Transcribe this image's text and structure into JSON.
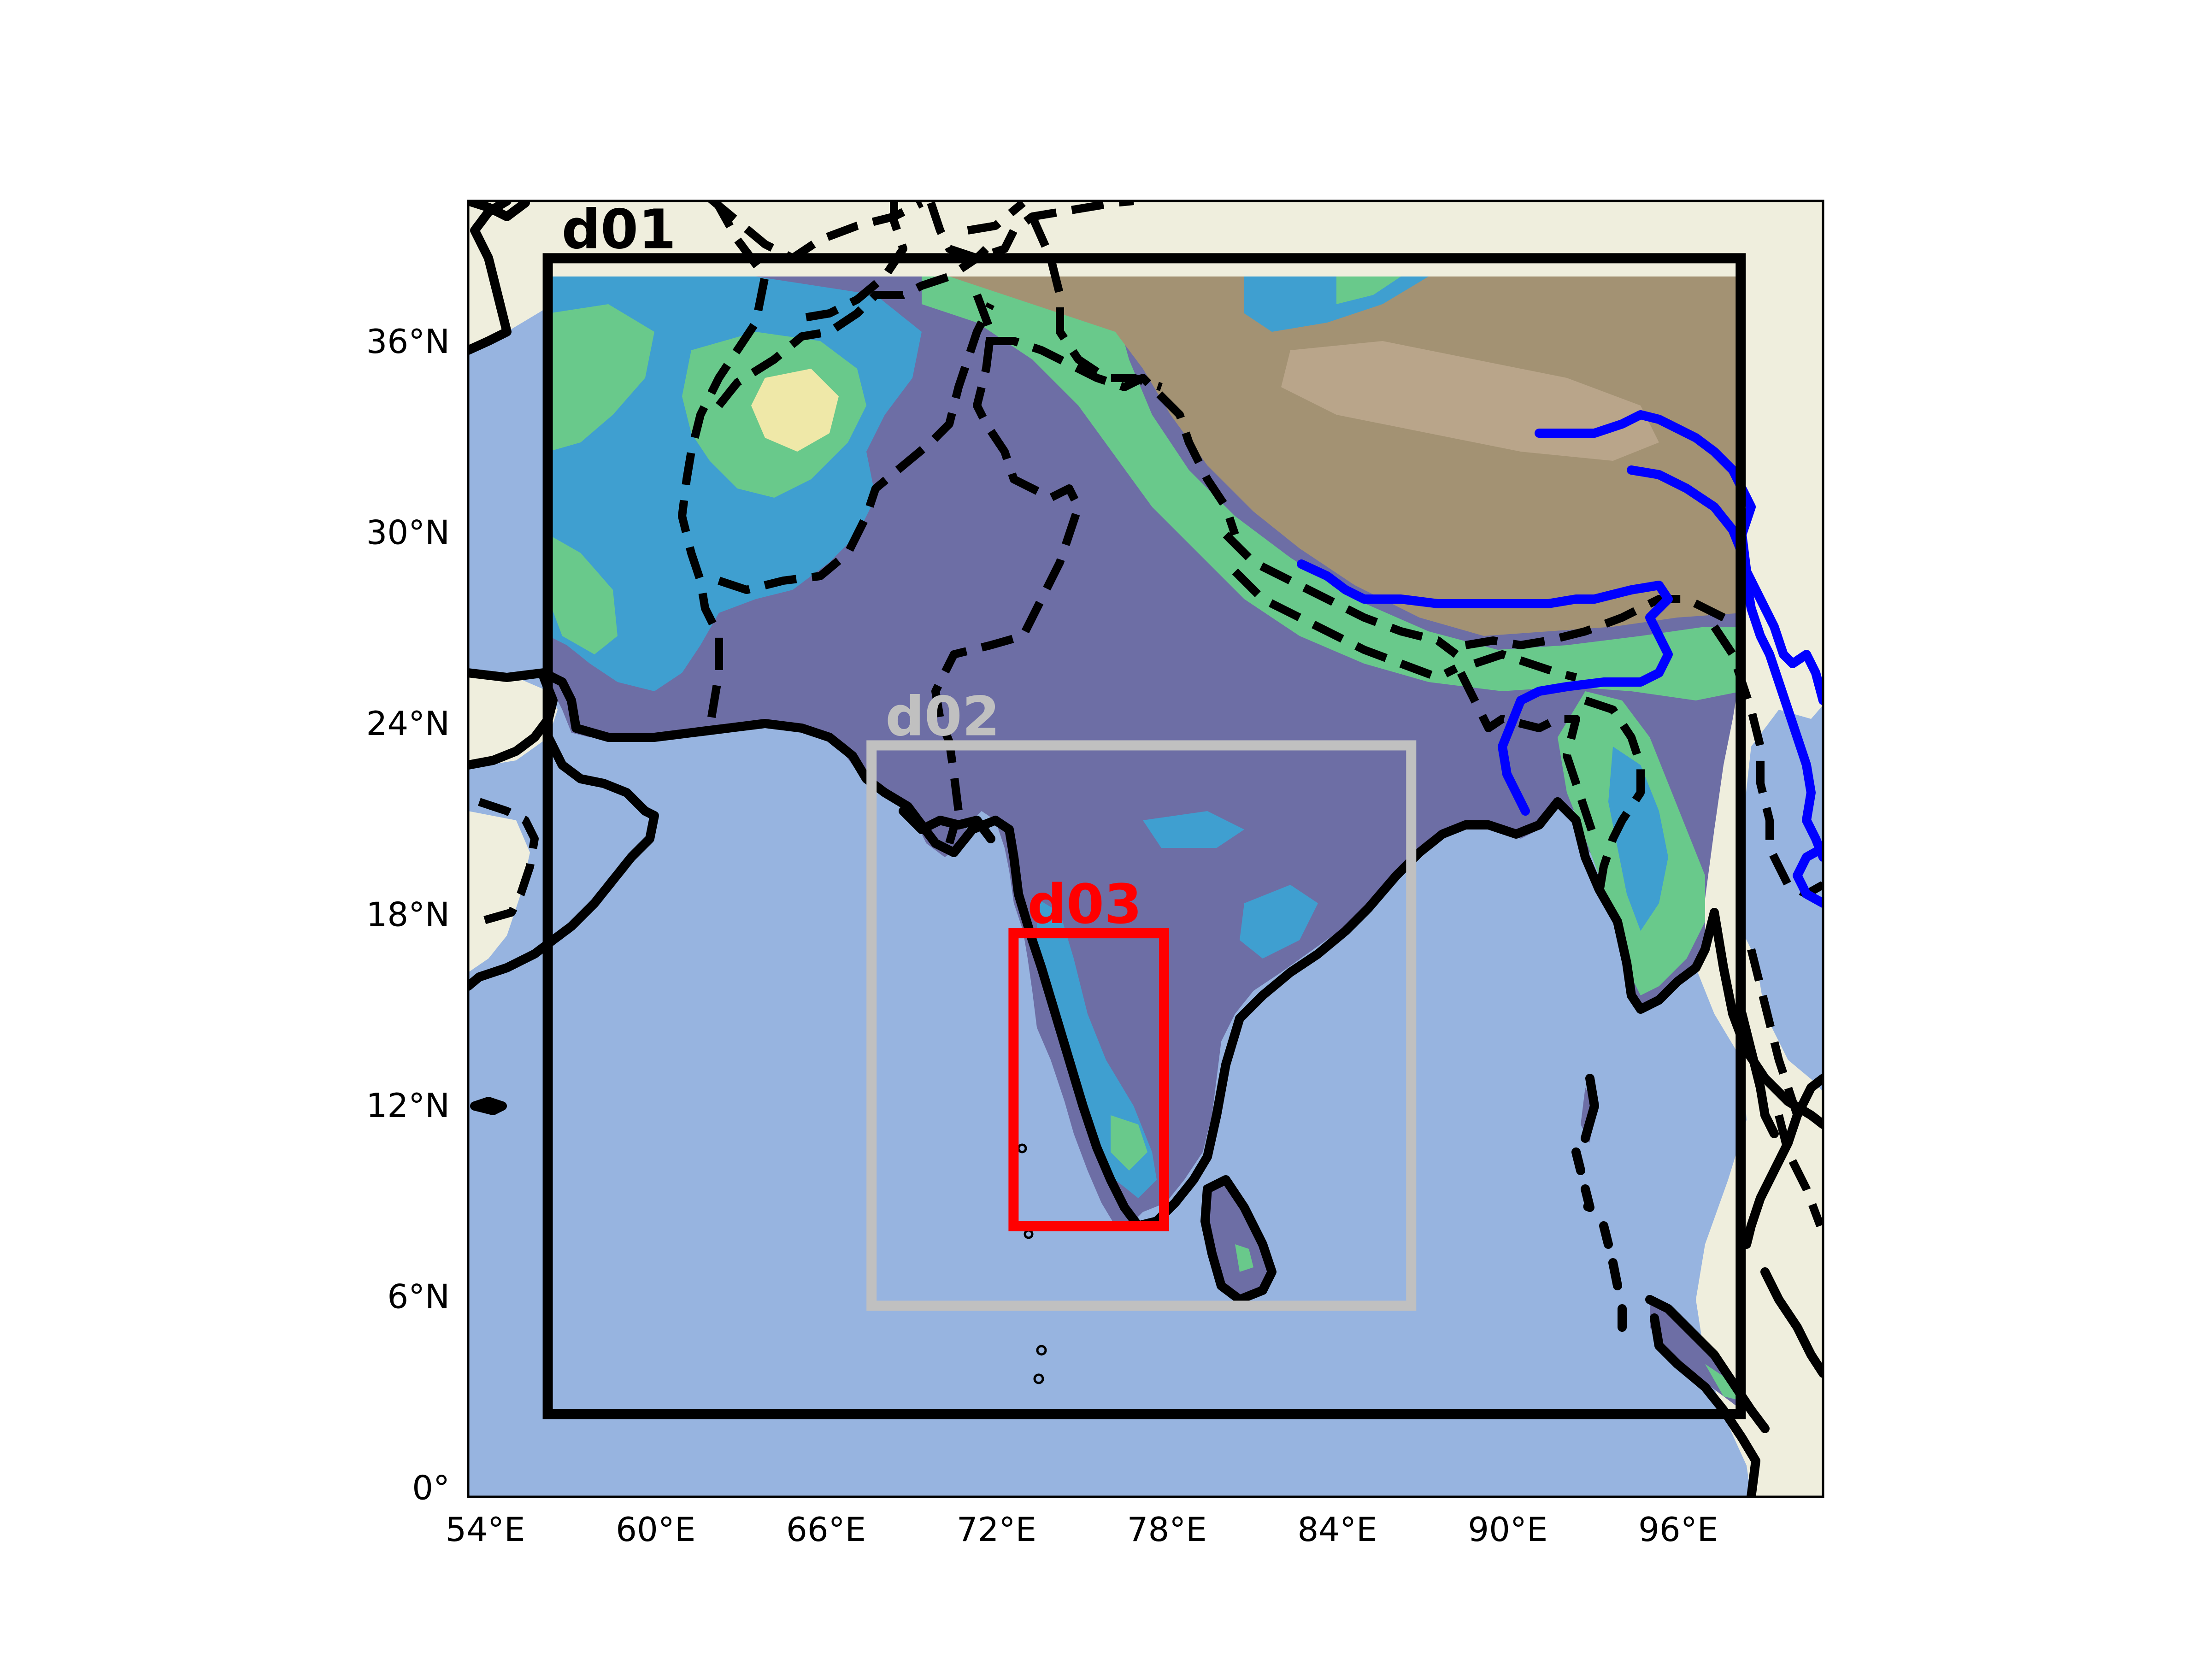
{
  "figure": {
    "x_ticks": [
      "54°E",
      "60°E",
      "66°E",
      "72°E",
      "78°E",
      "84°E",
      "90°E",
      "96°E"
    ],
    "y_ticks": [
      "36°N",
      "30°N",
      "24°N",
      "18°N",
      "12°N",
      "6°N",
      "0°"
    ],
    "x_tick_values": [
      54,
      60,
      66,
      72,
      78,
      84,
      90,
      96
    ],
    "y_tick_values": [
      36,
      30,
      24,
      18,
      12,
      6,
      0
    ],
    "lon_range": [
      53.4,
      101.1
    ],
    "lat_range": [
      -0.3,
      40.4
    ]
  },
  "domains": [
    {
      "label": "d01",
      "color": "#000000",
      "lon": [
        56.2,
        98.2
      ],
      "lat": [
        2.3,
        38.6
      ]
    },
    {
      "label": "d02",
      "color": "#c0c0c0",
      "lon": [
        67.6,
        86.6
      ],
      "lat": [
        5.7,
        23.3
      ]
    },
    {
      "label": "d03",
      "color": "#ff0000",
      "lon": [
        72.6,
        77.9
      ],
      "lat": [
        8.2,
        17.4
      ]
    }
  ],
  "colors": {
    "ocean": "#97b4e0",
    "land": "#efeedd",
    "plains": "#6d6ea5",
    "lowland": "#3f9fd0",
    "hills": "#69c98b",
    "highland": "#a39273",
    "plateau": "#9b8670",
    "river": "#0000ff",
    "border": "#000000"
  }
}
